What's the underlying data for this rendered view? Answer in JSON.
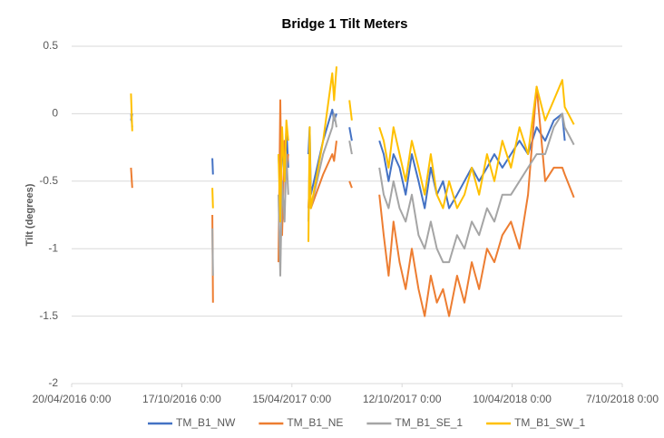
{
  "chart_data": {
    "type": "line",
    "title": "Bridge 1 Tilt Meters",
    "y_label": "Tilt (degrees)",
    "x": [
      "2016-07-26",
      "2016-07-28",
      "2016-10-01",
      "2016-12-06",
      "2016-12-07",
      "2017-02-01",
      "2017-03-24",
      "2017-03-27",
      "2017-03-30",
      "2017-04-03",
      "2017-04-06",
      "2017-04-09",
      "2017-04-25",
      "2017-05-12",
      "2017-05-14",
      "2017-05-16",
      "2017-06-05",
      "2017-06-20",
      "2017-06-23",
      "2017-06-27",
      "2017-07-10",
      "2017-07-18",
      "2017-07-22",
      "2017-08-10",
      "2017-09-05",
      "2017-09-12",
      "2017-09-20",
      "2017-09-28",
      "2017-10-08",
      "2017-10-18",
      "2017-10-28",
      "2017-11-08",
      "2017-11-18",
      "2017-11-28",
      "2017-12-08",
      "2017-12-18",
      "2017-12-28",
      "2018-01-10",
      "2018-01-22",
      "2018-02-03",
      "2018-02-15",
      "2018-02-28",
      "2018-03-12",
      "2018-03-25",
      "2018-04-08",
      "2018-04-22",
      "2018-05-06",
      "2018-05-20",
      "2018-06-03",
      "2018-06-17",
      "2018-07-01",
      "2018-07-05",
      "2018-07-20"
    ],
    "series": [
      {
        "name": "TM_B1_NW",
        "color": "#4472c4",
        "values": [
          -0.05,
          0.0,
          null,
          -0.33,
          -0.45,
          null,
          -0.3,
          -0.6,
          -0.2,
          -0.5,
          -0.1,
          -0.4,
          null,
          -0.3,
          -0.1,
          -0.6,
          -0.2,
          0.03,
          -0.05,
          0.0,
          null,
          -0.1,
          -0.2,
          null,
          -0.2,
          -0.3,
          -0.5,
          -0.3,
          -0.4,
          -0.6,
          -0.3,
          -0.5,
          -0.7,
          -0.4,
          -0.6,
          -0.5,
          -0.7,
          -0.6,
          -0.5,
          -0.4,
          -0.5,
          -0.4,
          -0.3,
          -0.4,
          -0.3,
          -0.2,
          -0.3,
          -0.1,
          -0.2,
          -0.05,
          0.0,
          -0.2,
          null
        ]
      },
      {
        "name": "TM_B1_NE",
        "color": "#ed7d31",
        "values": [
          -0.4,
          -0.55,
          null,
          -0.75,
          -1.4,
          null,
          -1.1,
          0.1,
          -0.9,
          -0.2,
          -0.4,
          -0.3,
          null,
          -0.7,
          -0.5,
          -0.7,
          -0.45,
          -0.3,
          -0.35,
          -0.2,
          null,
          -0.5,
          -0.55,
          null,
          -0.6,
          -0.9,
          -1.2,
          -0.8,
          -1.1,
          -1.3,
          -1.0,
          -1.3,
          -1.5,
          -1.2,
          -1.4,
          -1.3,
          -1.5,
          -1.2,
          -1.4,
          -1.1,
          -1.3,
          -1.0,
          -1.1,
          -0.9,
          -0.8,
          -1.0,
          -0.6,
          0.2,
          -0.5,
          -0.4,
          -0.4,
          -0.45,
          -0.62
        ]
      },
      {
        "name": "TM_B1_SE_1",
        "color": "#a5a5a5",
        "values": [
          0.0,
          -0.1,
          null,
          -0.85,
          -1.2,
          null,
          -0.6,
          -1.2,
          -0.5,
          -0.8,
          -0.3,
          -0.6,
          null,
          -0.8,
          -0.3,
          -0.7,
          -0.3,
          -0.1,
          0.0,
          -0.1,
          null,
          -0.2,
          -0.3,
          null,
          -0.4,
          -0.6,
          -0.7,
          -0.5,
          -0.7,
          -0.8,
          -0.6,
          -0.9,
          -1.0,
          -0.8,
          -1.0,
          -1.1,
          -1.1,
          -0.9,
          -1.0,
          -0.8,
          -0.9,
          -0.7,
          -0.8,
          -0.6,
          -0.6,
          -0.5,
          -0.4,
          -0.3,
          -0.3,
          -0.1,
          0.0,
          -0.1,
          -0.23
        ]
      },
      {
        "name": "TM_B1_SW_1",
        "color": "#ffc000",
        "values": [
          0.15,
          -0.13,
          null,
          -0.55,
          -0.7,
          null,
          -0.3,
          -0.8,
          -0.1,
          -0.5,
          -0.05,
          -0.2,
          null,
          -0.95,
          -0.1,
          -0.7,
          -0.2,
          0.3,
          0.1,
          0.35,
          null,
          0.1,
          -0.05,
          null,
          -0.1,
          -0.2,
          -0.4,
          -0.1,
          -0.3,
          -0.5,
          -0.2,
          -0.4,
          -0.6,
          -0.3,
          -0.6,
          -0.7,
          -0.5,
          -0.7,
          -0.6,
          -0.4,
          -0.6,
          -0.3,
          -0.5,
          -0.2,
          -0.4,
          -0.1,
          -0.3,
          0.2,
          -0.05,
          0.1,
          0.25,
          0.05,
          -0.08
        ]
      }
    ],
    "xlim": [
      "2016-04-20",
      "2018-10-07"
    ],
    "xticks": [
      {
        "value": "2016-04-20",
        "label": "20/04/2016 0:00"
      },
      {
        "value": "2016-10-17",
        "label": "17/10/2016 0:00"
      },
      {
        "value": "2017-04-15",
        "label": "15/04/2017 0:00"
      },
      {
        "value": "2017-10-12",
        "label": "12/10/2017 0:00"
      },
      {
        "value": "2018-04-10",
        "label": "10/04/2018 0:00"
      },
      {
        "value": "2018-10-07",
        "label": "7/10/2018 0:00"
      }
    ],
    "ylim": [
      -2,
      0.5
    ],
    "yticks": [
      -2,
      -1.5,
      -1,
      -0.5,
      0,
      0.5
    ],
    "grid": true,
    "legend": "bottom"
  }
}
